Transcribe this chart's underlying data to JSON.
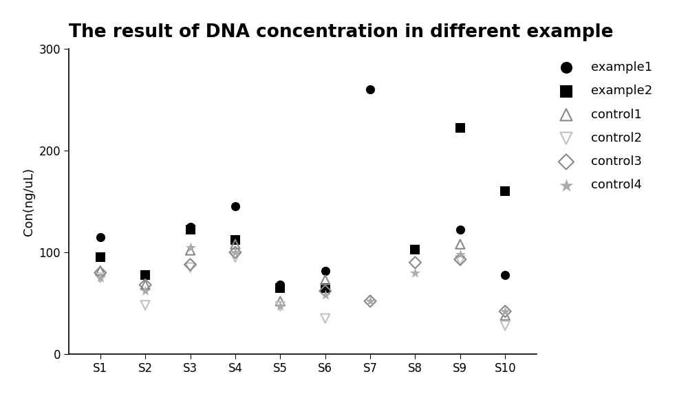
{
  "title": "The result of DNA concentration in different example",
  "ylabel": "Con(ng/uL)",
  "xlabel": "",
  "categories": [
    "S1",
    "S2",
    "S3",
    "S4",
    "S5",
    "S6",
    "S7",
    "S8",
    "S9",
    "S10"
  ],
  "series_order": [
    "example1",
    "example2",
    "control1",
    "control2",
    "control3",
    "control4"
  ],
  "series": {
    "example1": {
      "values": [
        115,
        78,
        125,
        145,
        68,
        82,
        260,
        103,
        122,
        78
      ],
      "color": "#000000",
      "marker": "o",
      "size": 90,
      "filled": true,
      "label": "example1"
    },
    "example2": {
      "values": [
        95,
        78,
        122,
        112,
        65,
        65,
        null,
        103,
        222,
        160
      ],
      "color": "#000000",
      "marker": "s",
      "size": 90,
      "filled": true,
      "label": "example2"
    },
    "control1": {
      "values": [
        82,
        68,
        102,
        108,
        52,
        73,
        null,
        null,
        108,
        38
      ],
      "color": "#888888",
      "marker": "^",
      "size": 90,
      "filled": false,
      "label": "control1"
    },
    "control2": {
      "values": [
        75,
        48,
        85,
        95,
        47,
        35,
        null,
        null,
        92,
        28
      ],
      "color": "#c0c0c0",
      "marker": "v",
      "size": 90,
      "filled": false,
      "label": "control2"
    },
    "control3": {
      "values": [
        80,
        68,
        88,
        100,
        null,
        62,
        52,
        90,
        93,
        42
      ],
      "color": "#888888",
      "marker": "D",
      "size": 75,
      "filled": false,
      "label": "control3"
    },
    "control4": {
      "values": [
        75,
        62,
        105,
        100,
        47,
        58,
        52,
        80,
        98,
        42
      ],
      "color": "#aaaaaa",
      "marker": "*",
      "size": 130,
      "filled": true,
      "label": "control4"
    }
  },
  "ylim": [
    0,
    300
  ],
  "yticks": [
    0,
    100,
    200,
    300
  ],
  "background_color": "#ffffff",
  "title_fontsize": 19,
  "axis_fontsize": 13,
  "tick_fontsize": 12,
  "legend_fontsize": 13,
  "linewidth": 1.5
}
